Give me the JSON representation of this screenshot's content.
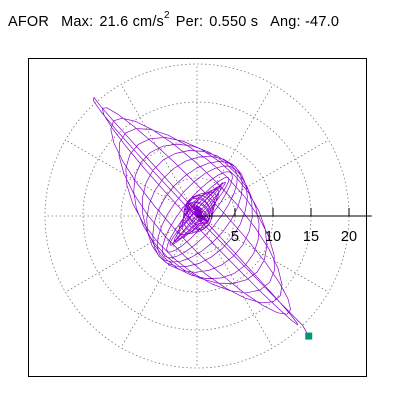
{
  "header": {
    "station": "AFOR",
    "max_label": "Max:",
    "max_value": "21.6",
    "max_unit": "cm/s",
    "max_exponent": "2",
    "period_label": "Per:",
    "period_value": "0.550 s",
    "angle_label": "Ang:",
    "angle_value": "-47.0"
  },
  "chart_data": {
    "type": "polar-orbit",
    "radial_ticks": [
      5,
      10,
      15,
      20
    ],
    "radial_tick_labels": [
      "5",
      "10",
      "15",
      "20"
    ],
    "radial_max": 20,
    "radial_axis_max": 23,
    "angular_gridline_step_deg": 30,
    "grid": true,
    "max_amplitude": 21.6,
    "max_angle_deg": -47.0,
    "marker_point": {
      "x": 14.7,
      "y": -15.8
    },
    "colors": {
      "trace": "#8800cc",
      "marker": "#009977",
      "grid": "#777777",
      "axis": "#000000"
    }
  }
}
